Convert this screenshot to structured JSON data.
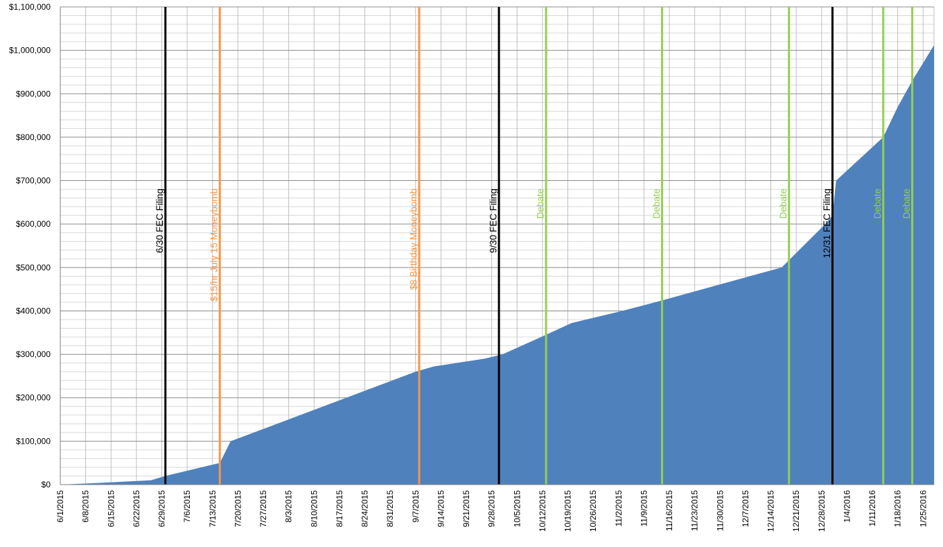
{
  "chart_data": {
    "type": "area",
    "title": "",
    "xlabel": "",
    "ylabel": "",
    "x_start": "2015-06-01",
    "x_end": "2016-01-28",
    "ylim": [
      0,
      1100000
    ],
    "y_ticks": [
      0,
      100000,
      200000,
      300000,
      400000,
      500000,
      600000,
      700000,
      800000,
      900000,
      1000000,
      1100000
    ],
    "y_tick_labels": [
      "$0",
      "$100,000",
      "$200,000",
      "$300,000",
      "$400,000",
      "$500,000",
      "$600,000",
      "$700,000",
      "$800,000",
      "$900,000",
      "$1,000,000",
      "$1,100,000"
    ],
    "x_tick_dates": [
      "2015-06-01",
      "2015-06-08",
      "2015-06-15",
      "2015-06-22",
      "2015-06-29",
      "2015-07-06",
      "2015-07-13",
      "2015-07-20",
      "2015-07-27",
      "2015-08-03",
      "2015-08-10",
      "2015-08-17",
      "2015-08-24",
      "2015-08-31",
      "2015-09-07",
      "2015-09-14",
      "2015-09-21",
      "2015-09-28",
      "2015-10-05",
      "2015-10-12",
      "2015-10-19",
      "2015-10-26",
      "2015-11-02",
      "2015-11-09",
      "2015-11-16",
      "2015-11-23",
      "2015-11-30",
      "2015-12-07",
      "2015-12-14",
      "2015-12-21",
      "2015-12-28",
      "2016-01-04",
      "2016-01-11",
      "2016-01-18",
      "2016-01-25"
    ],
    "x_tick_labels": [
      "6/1/2015",
      "6/8/2015",
      "6/15/2015",
      "6/22/2015",
      "6/29/2015",
      "7/6/2015",
      "7/13/2015",
      "7/20/2015",
      "7/27/2015",
      "8/3/2015",
      "8/10/2015",
      "8/17/2015",
      "8/24/2015",
      "8/31/2015",
      "9/7/2015",
      "9/14/2015",
      "9/21/2015",
      "9/28/2015",
      "10/5/2015",
      "10/12/2015",
      "10/19/2015",
      "10/26/2015",
      "11/2/2015",
      "11/9/2015",
      "11/16/2015",
      "11/23/2015",
      "11/30/2015",
      "12/7/2015",
      "12/14/2015",
      "12/21/2015",
      "12/28/2015",
      "1/4/2016",
      "1/11/2016",
      "1/18/2016",
      "1/25/2016"
    ],
    "minor_gridline_step": 20000,
    "grid": true,
    "legend": "none",
    "series": [
      {
        "color": "#4f81bd",
        "points": [
          [
            "2015-06-01",
            0
          ],
          [
            "2015-06-05",
            1500
          ],
          [
            "2015-06-12",
            4000
          ],
          [
            "2015-06-19",
            7000
          ],
          [
            "2015-06-26",
            10000
          ],
          [
            "2015-06-30",
            20000
          ],
          [
            "2015-07-15",
            50000
          ],
          [
            "2015-07-18",
            100000
          ],
          [
            "2015-09-07",
            260000
          ],
          [
            "2015-09-12",
            272000
          ],
          [
            "2015-09-26",
            290000
          ],
          [
            "2015-10-01",
            300000
          ],
          [
            "2015-10-13",
            345000
          ],
          [
            "2015-10-20",
            372000
          ],
          [
            "2015-11-03",
            400000
          ],
          [
            "2015-11-13",
            422000
          ],
          [
            "2015-12-17",
            500000
          ],
          [
            "2015-12-29",
            600000
          ],
          [
            "2015-12-31",
            620000
          ],
          [
            "2016-01-01",
            700000
          ],
          [
            "2016-01-14",
            800000
          ],
          [
            "2016-01-18",
            870000
          ],
          [
            "2016-01-22",
            930000
          ],
          [
            "2016-01-28",
            1012000
          ]
        ]
      }
    ],
    "events": [
      {
        "date": "2015-06-30",
        "label": "6/30 FEC Filing",
        "color": "#000000"
      },
      {
        "date": "2015-07-15",
        "label": "$15/hr July 15 Moneybomb",
        "color": "#f79646"
      },
      {
        "date": "2015-09-08",
        "label": "$8 Birthday Moneybomb",
        "color": "#f79646"
      },
      {
        "date": "2015-09-30",
        "label": "9/30 FEC Filing",
        "color": "#000000"
      },
      {
        "date": "2015-10-13",
        "label": "Debate",
        "color": "#92d050"
      },
      {
        "date": "2015-11-14",
        "label": "Debate",
        "color": "#92d050"
      },
      {
        "date": "2015-12-19",
        "label": "Debate",
        "color": "#92d050"
      },
      {
        "date": "2015-12-31",
        "label": "12/31 FEC Filing",
        "color": "#000000"
      },
      {
        "date": "2016-01-14",
        "label": "Debate",
        "color": "#92d050"
      },
      {
        "date": "2016-01-22",
        "label": "Debate",
        "color": "#92d050"
      }
    ]
  }
}
